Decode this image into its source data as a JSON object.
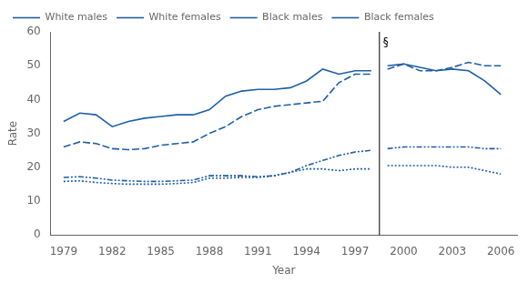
{
  "chart_data": {
    "type": "line",
    "xlabel": "Year",
    "ylabel": "Rate",
    "x": [
      1979,
      1980,
      1981,
      1982,
      1983,
      1984,
      1985,
      1986,
      1987,
      1988,
      1989,
      1990,
      1991,
      1992,
      1993,
      1994,
      1995,
      1996,
      1997,
      1998,
      1998.5,
      1999,
      2000,
      2001,
      2002,
      2003,
      2004,
      2005,
      2006
    ],
    "series": [
      {
        "name": "White males",
        "color": "#1f5fa6",
        "line_style": "dashdot",
        "values": [
          17.0,
          17.2,
          16.8,
          16.2,
          16.0,
          15.8,
          15.8,
          16.0,
          16.2,
          17.5,
          17.5,
          17.5,
          17.2,
          17.5,
          18.5,
          20.5,
          22.0,
          23.5,
          24.5,
          25.0,
          null,
          25.5,
          26.0,
          26.0,
          26.0,
          26.0,
          26.0,
          25.5,
          25.5
        ]
      },
      {
        "name": "White females",
        "color": "#1f5fa6",
        "line_style": "dotted",
        "values": [
          15.8,
          16.0,
          15.5,
          15.2,
          15.0,
          15.0,
          15.0,
          15.2,
          15.5,
          16.8,
          16.8,
          17.0,
          17.0,
          17.5,
          18.5,
          19.5,
          19.5,
          19.0,
          19.5,
          19.5,
          null,
          20.5,
          20.5,
          20.5,
          20.5,
          20.0,
          20.0,
          19.0,
          18.0
        ]
      },
      {
        "name": "Black males",
        "color": "#1f5fa6",
        "line_style": "dashed",
        "values": [
          26.0,
          27.5,
          27.0,
          25.5,
          25.2,
          25.5,
          26.5,
          27.0,
          27.5,
          30.0,
          32.0,
          35.0,
          37.0,
          38.0,
          38.5,
          39.0,
          39.5,
          45.0,
          47.5,
          47.5,
          null,
          49.0,
          50.5,
          48.5,
          48.5,
          49.5,
          51.0,
          50.0,
          50.0
        ]
      },
      {
        "name": "Black females",
        "color": "#1f5fa6",
        "line_style": "solid",
        "values": [
          33.5,
          36.0,
          35.5,
          32.0,
          33.5,
          34.5,
          35.0,
          35.5,
          35.5,
          37.0,
          41.0,
          42.5,
          43.0,
          43.0,
          43.5,
          45.5,
          49.0,
          47.5,
          48.5,
          48.5,
          null,
          50.0,
          50.5,
          49.5,
          48.5,
          49.0,
          48.5,
          45.5,
          41.5
        ]
      }
    ],
    "vline": 1998.5,
    "annotations": [
      {
        "text": "§",
        "x": 1998.5,
        "y": 58.5
      }
    ],
    "xlim": [
      1978.2,
      2007
    ],
    "xticks": [
      1979,
      1982,
      1985,
      1988,
      1991,
      1994,
      1997,
      2000,
      2003,
      2006
    ],
    "ylim": [
      0,
      60
    ],
    "yticks": [
      0,
      10,
      20,
      30,
      40,
      50,
      60
    ],
    "grid": false,
    "legend": "upper left"
  }
}
